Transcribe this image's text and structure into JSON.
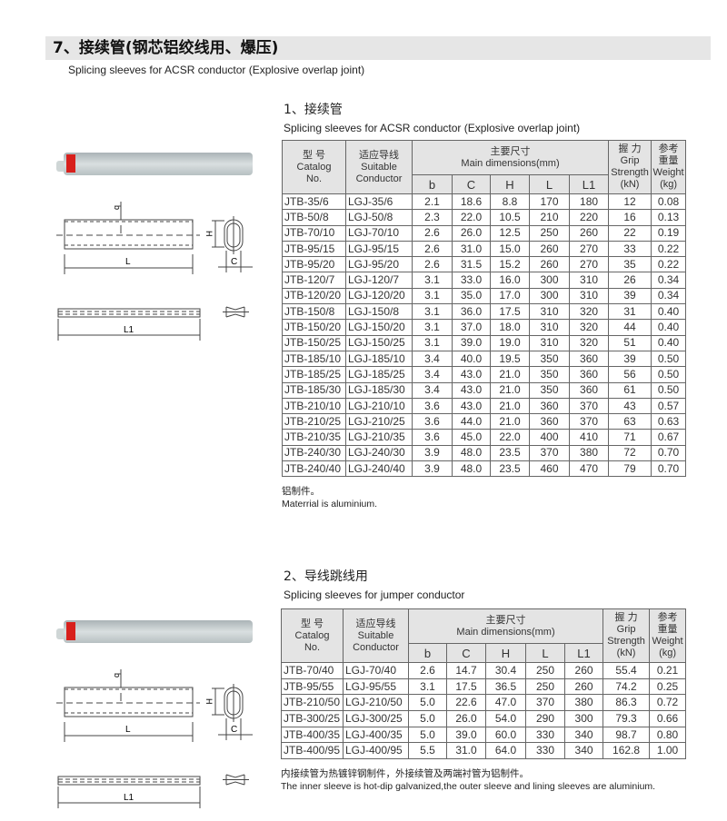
{
  "title": "7、接续管(钢芯铝绞线用、爆压)",
  "subtitle": "Splicing sleeves for ACSR conductor (Explosive overlap joint)",
  "headers": {
    "catalog_cn": "型 号",
    "catalog_en1": "Catalog",
    "catalog_en2": "No.",
    "cond_cn": "适应导线",
    "cond_en1": "Suitable",
    "cond_en2": "Conductor",
    "dims_cn": "主要尺寸",
    "dims_en": "Main dimensions(mm)",
    "cols": [
      "b",
      "C",
      "H",
      "L",
      "L1"
    ],
    "grip_cn": "握 力",
    "grip_en1": "Grip",
    "grip_en2": "Strength",
    "grip_unit": "(kN)",
    "weight_cn1": "参考",
    "weight_cn2": "重量",
    "weight_en": "Weight",
    "weight_unit": "(kg)"
  },
  "drawing_labels": {
    "b": "b",
    "H": "H",
    "L": "L",
    "C": "C",
    "L1": "L1"
  },
  "section1": {
    "title": "1、接续管",
    "subtitle": "Splicing sleeves for ACSR conductor (Explosive overlap joint)",
    "rows": [
      [
        "JTB-35/6",
        "LGJ-35/6",
        "2.1",
        "18.6",
        "8.8",
        "170",
        "180",
        "12",
        "0.08"
      ],
      [
        "JTB-50/8",
        "LGJ-50/8",
        "2.3",
        "22.0",
        "10.5",
        "210",
        "220",
        "16",
        "0.13"
      ],
      [
        "JTB-70/10",
        "LGJ-70/10",
        "2.6",
        "26.0",
        "12.5",
        "250",
        "260",
        "22",
        "0.19"
      ],
      [
        "JTB-95/15",
        "LGJ-95/15",
        "2.6",
        "31.0",
        "15.0",
        "260",
        "270",
        "33",
        "0.22"
      ],
      [
        "JTB-95/20",
        "LGJ-95/20",
        "2.6",
        "31.5",
        "15.2",
        "260",
        "270",
        "35",
        "0.22"
      ],
      [
        "JTB-120/7",
        "LGJ-120/7",
        "3.1",
        "33.0",
        "16.0",
        "300",
        "310",
        "26",
        "0.34"
      ],
      [
        "JTB-120/20",
        "LGJ-120/20",
        "3.1",
        "35.0",
        "17.0",
        "300",
        "310",
        "39",
        "0.34"
      ],
      [
        "JTB-150/8",
        "LGJ-150/8",
        "3.1",
        "36.0",
        "17.5",
        "310",
        "320",
        "31",
        "0.40"
      ],
      [
        "JTB-150/20",
        "LGJ-150/20",
        "3.1",
        "37.0",
        "18.0",
        "310",
        "320",
        "44",
        "0.40"
      ],
      [
        "JTB-150/25",
        "LGJ-150/25",
        "3.1",
        "39.0",
        "19.0",
        "310",
        "320",
        "51",
        "0.40"
      ],
      [
        "JTB-185/10",
        "LGJ-185/10",
        "3.4",
        "40.0",
        "19.5",
        "350",
        "360",
        "39",
        "0.50"
      ],
      [
        "JTB-185/25",
        "LGJ-185/25",
        "3.4",
        "43.0",
        "21.0",
        "350",
        "360",
        "56",
        "0.50"
      ],
      [
        "JTB-185/30",
        "LGJ-185/30",
        "3.4",
        "43.0",
        "21.0",
        "350",
        "360",
        "61",
        "0.50"
      ],
      [
        "JTB-210/10",
        "LGJ-210/10",
        "3.6",
        "43.0",
        "21.0",
        "360",
        "370",
        "43",
        "0.57"
      ],
      [
        "JTB-210/25",
        "LGJ-210/25",
        "3.6",
        "44.0",
        "21.0",
        "360",
        "370",
        "63",
        "0.63"
      ],
      [
        "JTB-210/35",
        "LGJ-210/35",
        "3.6",
        "45.0",
        "22.0",
        "400",
        "410",
        "71",
        "0.67"
      ],
      [
        "JTB-240/30",
        "LGJ-240/30",
        "3.9",
        "48.0",
        "23.5",
        "370",
        "380",
        "72",
        "0.70"
      ],
      [
        "JTB-240/40",
        "LGJ-240/40",
        "3.9",
        "48.0",
        "23.5",
        "460",
        "470",
        "79",
        "0.70"
      ]
    ],
    "note_cn": "铝制件。",
    "note_en": "Materrial is  aluminium."
  },
  "section2": {
    "title": "2、导线跳线用",
    "subtitle": "Splicing sleeves for jumper conductor",
    "rows": [
      [
        "JTB-70/40",
        "LGJ-70/40",
        "2.6",
        "14.7",
        "30.4",
        "250",
        "260",
        "55.4",
        "0.21"
      ],
      [
        "JTB-95/55",
        "LGJ-95/55",
        "3.1",
        "17.5",
        "36.5",
        "250",
        "260",
        "74.2",
        "0.25"
      ],
      [
        "JTB-210/50",
        "LGJ-210/50",
        "5.0",
        "22.6",
        "47.0",
        "370",
        "380",
        "86.3",
        "0.72"
      ],
      [
        "JTB-300/25",
        "LGJ-300/25",
        "5.0",
        "26.0",
        "54.0",
        "290",
        "300",
        "79.3",
        "0.66"
      ],
      [
        "JTB-400/35",
        "LGJ-400/35",
        "5.0",
        "39.0",
        "60.0",
        "330",
        "340",
        "98.7",
        "0.80"
      ],
      [
        "JTB-400/95",
        "LGJ-400/95",
        "5.5",
        "31.0",
        "64.0",
        "330",
        "340",
        "162.8",
        "1.00"
      ]
    ],
    "note_cn": "内接续管为热镀锌钢制件，外接续管及两端衬管为铝制件。",
    "note_en": "The inner sleeve is hot-dip galvanized,the outer sleeve and lining sleeves are aluminium."
  },
  "colors": {
    "title_bar": "#e6e6e6",
    "header_bg": "#e4e4e4",
    "tag_red": "#d8201c"
  }
}
